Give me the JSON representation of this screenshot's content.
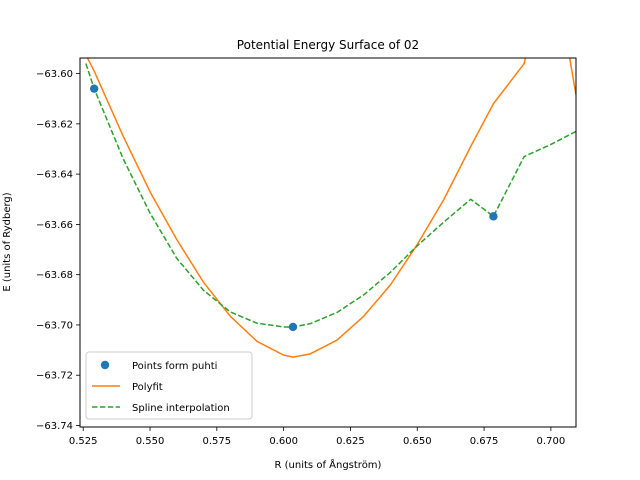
{
  "chart_data": {
    "type": "line",
    "title": "Potential Energy Surface of 02",
    "xlabel": "R (units of Ångström)",
    "ylabel": "E (units of Rydberg)",
    "xlim": [
      0.5238,
      0.7094
    ],
    "ylim": [
      -63.7406,
      -63.5938
    ],
    "xticks": [
      0.525,
      0.55,
      0.575,
      0.6,
      0.625,
      0.65,
      0.675,
      0.7
    ],
    "xtick_labels": [
      "0.525",
      "0.550",
      "0.575",
      "0.600",
      "0.625",
      "0.650",
      "0.675",
      "0.700"
    ],
    "yticks": [
      -63.6,
      -63.62,
      -63.64,
      -63.66,
      -63.68,
      -63.7,
      -63.72,
      -63.74
    ],
    "ytick_labels": [
      "−63.60",
      "−63.62",
      "−63.64",
      "−63.66",
      "−63.68",
      "−63.70",
      "−63.72",
      "−63.74"
    ],
    "grid": false,
    "legend_position": "lower-left",
    "series": [
      {
        "name": "Points form puhti",
        "kind": "scatter",
        "color": "#1f77b4",
        "x": [
          0.5291,
          0.6035,
          0.6785
        ],
        "y": [
          -63.606,
          -63.7008,
          -63.6568
        ]
      },
      {
        "name": "Polyfit",
        "kind": "line",
        "style": "solid",
        "color": "#ff7f0e",
        "x": [
          0.5238,
          0.5291,
          0.54,
          0.55,
          0.56,
          0.57,
          0.58,
          0.59,
          0.6,
          0.6035,
          0.61,
          0.62,
          0.63,
          0.64,
          0.65,
          0.66,
          0.67,
          0.6785,
          0.69,
          0.7,
          0.7094
        ],
        "y": [
          -63.588,
          -63.599,
          -63.625,
          -63.647,
          -63.666,
          -63.683,
          -63.6965,
          -63.7065,
          -63.712,
          -63.7128,
          -63.7115,
          -63.706,
          -63.6965,
          -63.684,
          -63.668,
          -63.65,
          -63.629,
          -63.612,
          -63.596,
          -63.55,
          -63.6085
        ]
      },
      {
        "name": "Spline interpolation",
        "kind": "line",
        "style": "dashed",
        "color": "#2ca02c",
        "x": [
          0.526,
          0.5291,
          0.54,
          0.55,
          0.56,
          0.57,
          0.58,
          0.59,
          0.6,
          0.6035,
          0.61,
          0.62,
          0.63,
          0.64,
          0.65,
          0.66,
          0.67,
          0.6785,
          0.69,
          0.7,
          0.7094
        ],
        "y": [
          -63.596,
          -63.606,
          -63.634,
          -63.6555,
          -63.6735,
          -63.6862,
          -63.6948,
          -63.6993,
          -63.7008,
          -63.7008,
          -63.6995,
          -63.695,
          -63.688,
          -63.679,
          -63.6685,
          -63.659,
          -63.65,
          -63.6568,
          -63.633,
          -63.6282,
          -63.623
        ]
      }
    ]
  }
}
